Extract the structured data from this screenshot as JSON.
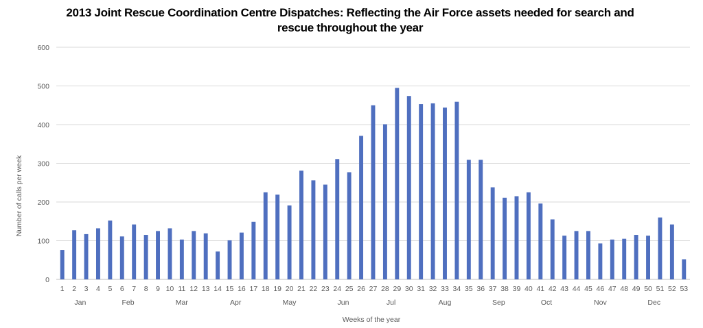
{
  "chart_data": {
    "type": "bar",
    "title": "2013 Joint Rescue Coordination Centre Dispatches: Reflecting the Air Force assets needed for search and rescue throughout the year",
    "xlabel": "Weeks of the year",
    "ylabel": "Number of calls per week",
    "ylim": [
      0,
      600
    ],
    "yticks": [
      0,
      100,
      200,
      300,
      400,
      500,
      600
    ],
    "grid": true,
    "legend": "none",
    "bar_color": "#4f6fbf",
    "categories": [
      "1",
      "2",
      "3",
      "4",
      "5",
      "6",
      "7",
      "8",
      "9",
      "10",
      "11",
      "12",
      "13",
      "14",
      "15",
      "16",
      "17",
      "18",
      "19",
      "20",
      "21",
      "22",
      "23",
      "24",
      "25",
      "26",
      "27",
      "28",
      "29",
      "30",
      "31",
      "32",
      "33",
      "34",
      "35",
      "36",
      "37",
      "38",
      "39",
      "40",
      "41",
      "42",
      "43",
      "44",
      "45",
      "46",
      "47",
      "48",
      "49",
      "50",
      "51",
      "52",
      "53"
    ],
    "values": [
      76,
      127,
      117,
      132,
      152,
      111,
      142,
      115,
      125,
      132,
      103,
      125,
      119,
      72,
      101,
      121,
      149,
      225,
      219,
      191,
      281,
      256,
      245,
      311,
      277,
      371,
      450,
      401,
      495,
      474,
      453,
      455,
      444,
      459,
      309,
      309,
      238,
      211,
      215,
      225,
      196,
      155,
      113,
      125,
      125,
      93,
      103,
      105,
      115,
      113,
      160,
      142,
      52
    ],
    "month_labels": [
      {
        "label": "Jan",
        "week_from": 1,
        "week_to": 4
      },
      {
        "label": "Feb",
        "week_from": 5,
        "week_to": 8
      },
      {
        "label": "Mar",
        "week_from": 9,
        "week_to": 13
      },
      {
        "label": "Apr",
        "week_from": 14,
        "week_to": 17
      },
      {
        "label": "May",
        "week_from": 18,
        "week_to": 22
      },
      {
        "label": "Jun",
        "week_from": 23,
        "week_to": 26
      },
      {
        "label": "Jul",
        "week_from": 27,
        "week_to": 30
      },
      {
        "label": "Aug",
        "week_from": 31,
        "week_to": 35
      },
      {
        "label": "Sep",
        "week_from": 36,
        "week_to": 39
      },
      {
        "label": "Oct",
        "week_from": 40,
        "week_to": 43
      },
      {
        "label": "Nov",
        "week_from": 44,
        "week_to": 48
      },
      {
        "label": "Dec",
        "week_from": 49,
        "week_to": 52
      }
    ]
  }
}
